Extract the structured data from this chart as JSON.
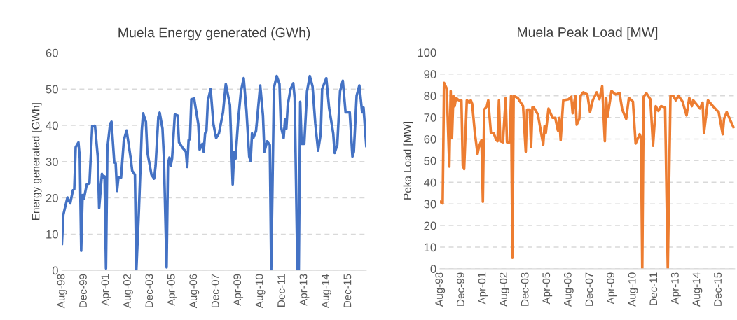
{
  "chart_data": [
    {
      "type": "line",
      "title": "Muela Energy generated (GWh)",
      "ylabel": "Energy generated [GWh]",
      "grid": "y",
      "xlim": [
        "1998-08",
        "2017-01"
      ],
      "ylim": [
        0,
        60
      ],
      "yticks": [
        0,
        10,
        20,
        30,
        40,
        50,
        60
      ],
      "xticks": [
        {
          "value": "1998-08",
          "label": "Aug-98"
        },
        {
          "value": "1999-12",
          "label": "Dec-99"
        },
        {
          "value": "2001-04",
          "label": "Apr-01"
        },
        {
          "value": "2002-08",
          "label": "Aug-02"
        },
        {
          "value": "2003-12",
          "label": "Dec-03"
        },
        {
          "value": "2005-04",
          "label": "Apr-05"
        },
        {
          "value": "2006-08",
          "label": "Aug-06"
        },
        {
          "value": "2007-12",
          "label": "Dec-07"
        },
        {
          "value": "2009-04",
          "label": "Apr-09"
        },
        {
          "value": "2010-08",
          "label": "Aug-10"
        },
        {
          "value": "2011-12",
          "label": "Dec-11"
        },
        {
          "value": "2013-04",
          "label": "Apr-13"
        },
        {
          "value": "2014-08",
          "label": "Aug-14"
        },
        {
          "value": "2015-12",
          "label": "Dec-15"
        }
      ],
      "series": [
        {
          "color": "#4472c4",
          "x": [
            "1998-08",
            "1998-09",
            "1998-10",
            "1998-12",
            "1999-02",
            "1999-04",
            "1999-05",
            "1999-06",
            "1999-08",
            "1999-09",
            "1999-10",
            "1999-11",
            "1999-12",
            "2000-02",
            "2000-04",
            "2000-06",
            "2000-08",
            "2000-10",
            "2000-11",
            "2001-01",
            "2001-02",
            "2001-03",
            "2001-04",
            "2001-05",
            "2001-07",
            "2001-08",
            "2001-10",
            "2001-11",
            "2001-12",
            "2002-01",
            "2002-03",
            "2002-05",
            "2002-07",
            "2002-10",
            "2002-11",
            "2003-01",
            "2003-02",
            "2003-04",
            "2003-06",
            "2003-07",
            "2003-09",
            "2003-10",
            "2004-01",
            "2004-03",
            "2004-04",
            "2004-06",
            "2004-07",
            "2004-09",
            "2004-10",
            "2004-12",
            "2005-01",
            "2005-02",
            "2005-03",
            "2005-04",
            "2005-06",
            "2005-08",
            "2005-09",
            "2005-12",
            "2006-02",
            "2006-03",
            "2006-04",
            "2006-05",
            "2006-06",
            "2006-08",
            "2006-11",
            "2006-12",
            "2007-02",
            "2007-03",
            "2007-04",
            "2007-05",
            "2007-06",
            "2007-08",
            "2007-10",
            "2007-12",
            "2008-02",
            "2008-05",
            "2008-07",
            "2008-10",
            "2008-12",
            "2009-01",
            "2009-02",
            "2009-04",
            "2009-06",
            "2009-08",
            "2009-10",
            "2009-12",
            "2010-01",
            "2010-02",
            "2010-03",
            "2010-05",
            "2010-08",
            "2010-10",
            "2010-11",
            "2011-01",
            "2011-03",
            "2011-04",
            "2011-06",
            "2011-08",
            "2011-10",
            "2011-11",
            "2012-01",
            "2012-02",
            "2012-03",
            "2012-04",
            "2012-06",
            "2012-08",
            "2012-09",
            "2012-11",
            "2012-12",
            "2013-01",
            "2013-02",
            "2013-04",
            "2013-06",
            "2013-08",
            "2013-10",
            "2013-12",
            "2014-02",
            "2014-04",
            "2014-05",
            "2014-08",
            "2014-10",
            "2015-01",
            "2015-02",
            "2015-04",
            "2015-06",
            "2015-08",
            "2015-10",
            "2016-01",
            "2016-03",
            "2016-04",
            "2016-06",
            "2016-08",
            "2016-10",
            "2016-11",
            "2017-01"
          ],
          "values": [
            7.3,
            15.3,
            16.9,
            20.1,
            18.5,
            22.1,
            22.4,
            34,
            35.3,
            30.8,
            5.4,
            20.8,
            19.8,
            23.7,
            24,
            39.8,
            39.9,
            31.4,
            17.2,
            26.6,
            25.6,
            25.9,
            0.5,
            33.6,
            40.4,
            41,
            29.8,
            29.5,
            21.9,
            25.6,
            25.6,
            35.9,
            38.6,
            30.8,
            27.5,
            26.4,
            0,
            17.2,
            38.5,
            43.3,
            41,
            32.7,
            26.4,
            25.3,
            28.8,
            42.3,
            43.5,
            39.1,
            31.4,
            0.8,
            29.5,
            31.1,
            28.8,
            30.8,
            43,
            42.7,
            35.3,
            33.6,
            32.7,
            28.5,
            35.9,
            36.2,
            47.2,
            47.4,
            40.4,
            33.3,
            34.9,
            32.7,
            37.8,
            38.5,
            46.8,
            50,
            40.4,
            36.5,
            37.8,
            43.6,
            51.4,
            45.6,
            23.7,
            32.7,
            30.8,
            41.4,
            49.4,
            53,
            44,
            31.4,
            30.1,
            37.8,
            36.5,
            38.5,
            51,
            42.7,
            32.7,
            35.6,
            34.6,
            0,
            50.4,
            53.6,
            51.4,
            39.8,
            36.5,
            41.7,
            39.1,
            45.6,
            50,
            51.6,
            47.5,
            0,
            0,
            46.5,
            34.9,
            34.9,
            49.4,
            53.6,
            50.7,
            40.4,
            33,
            37.8,
            50,
            53,
            44.9,
            37.8,
            32.4,
            34.6,
            49.4,
            52.3,
            43.6,
            43.6,
            31.4,
            32.7,
            48.1,
            51,
            43.6,
            44.9,
            34.3
          ]
        }
      ]
    },
    {
      "type": "line",
      "title": "Muela Peak Load [MW]",
      "ylabel": "Peka Load [MW]",
      "grid": "y",
      "xlim": [
        "1998-08",
        "2016-12"
      ],
      "ylim": [
        0,
        100
      ],
      "yticks": [
        0,
        10,
        20,
        30,
        40,
        50,
        60,
        70,
        80,
        90,
        100
      ],
      "xticks": [
        {
          "value": "1998-08",
          "label": "Aug-98"
        },
        {
          "value": "1999-12",
          "label": "Dec-99"
        },
        {
          "value": "2001-04",
          "label": "Apr-01"
        },
        {
          "value": "2002-08",
          "label": "Aug-02"
        },
        {
          "value": "2003-12",
          "label": "Dec-03"
        },
        {
          "value": "2005-04",
          "label": "Apr-05"
        },
        {
          "value": "2006-08",
          "label": "Aug-06"
        },
        {
          "value": "2007-12",
          "label": "Dec-07"
        },
        {
          "value": "2009-04",
          "label": "Apr-09"
        },
        {
          "value": "2010-08",
          "label": "Aug-10"
        },
        {
          "value": "2011-12",
          "label": "Dec-11"
        },
        {
          "value": "2013-04",
          "label": "Apr-13"
        },
        {
          "value": "2014-08",
          "label": "Aug-14"
        },
        {
          "value": "2015-12",
          "label": "Dec-15"
        }
      ],
      "series": [
        {
          "color": "#ed7d31",
          "x": [
            "1998-08",
            "1998-10",
            "1998-11",
            "1999-01",
            "1999-03",
            "1999-04",
            "1999-05",
            "1999-06",
            "1999-07",
            "1999-08",
            "1999-10",
            "1999-12",
            "2000-01",
            "2000-02",
            "2000-04",
            "2000-06",
            "2000-07",
            "2000-08",
            "2000-10",
            "2000-12",
            "2001-01",
            "2001-03",
            "2001-04",
            "2001-05",
            "2001-07",
            "2001-08",
            "2001-10",
            "2001-12",
            "2002-02",
            "2002-03",
            "2002-04",
            "2002-05",
            "2002-07",
            "2002-09",
            "2002-10",
            "2002-12",
            "2003-01",
            "2003-02",
            "2003-03",
            "2003-06",
            "2003-10",
            "2003-12",
            "2004-01",
            "2004-03",
            "2004-04",
            "2004-05",
            "2004-06",
            "2004-09",
            "2005-01",
            "2005-02",
            "2005-03",
            "2005-05",
            "2005-08",
            "2005-10",
            "2005-12",
            "2006-01",
            "2006-02",
            "2006-04",
            "2006-08",
            "2006-10",
            "2006-11",
            "2007-01",
            "2007-02",
            "2007-04",
            "2007-05",
            "2007-07",
            "2007-10",
            "2007-12",
            "2008-02",
            "2008-05",
            "2008-07",
            "2008-09",
            "2008-11",
            "2008-12",
            "2009-01",
            "2009-04",
            "2009-07",
            "2009-10",
            "2009-12",
            "2010-03",
            "2010-05",
            "2010-08",
            "2010-10",
            "2011-01",
            "2011-02",
            "2011-03",
            "2011-04",
            "2011-06",
            "2011-09",
            "2011-11",
            "2012-01",
            "2012-03",
            "2012-05",
            "2012-08",
            "2012-10",
            "2012-12",
            "2013-02",
            "2013-04",
            "2013-06",
            "2013-09",
            "2013-12",
            "2014-02",
            "2014-04",
            "2014-05",
            "2014-10",
            "2014-12",
            "2015-01",
            "2015-04",
            "2015-07",
            "2015-11",
            "2015-12",
            "2016-03",
            "2016-04",
            "2016-06",
            "2016-09",
            "2016-11"
          ],
          "values": [
            31,
            30.2,
            86,
            83.3,
            47.2,
            82.2,
            60.6,
            80,
            75.2,
            79,
            77.9,
            77.9,
            47.7,
            46.1,
            77.9,
            76.8,
            77.9,
            76.3,
            62.8,
            53.1,
            56.3,
            59.5,
            31,
            73.6,
            75.2,
            77.9,
            62.8,
            62.8,
            59.5,
            59,
            77.9,
            59,
            58.5,
            79,
            58.5,
            58.5,
            80,
            5.1,
            80,
            79,
            75.2,
            54.1,
            73.6,
            73.6,
            56.3,
            74.6,
            74.6,
            71.4,
            57.4,
            66,
            62.8,
            74.1,
            69.8,
            69.8,
            63.9,
            69.8,
            59.5,
            77.9,
            78.4,
            79.5,
            71.9,
            80,
            66.6,
            69.3,
            80,
            81.6,
            80.6,
            72.5,
            77.9,
            81.6,
            78.4,
            84.4,
            59,
            79,
            70.3,
            82.2,
            80.6,
            81.2,
            73.6,
            69.3,
            79,
            77.3,
            57.9,
            62.2,
            60.6,
            0,
            79.5,
            81.2,
            78.4,
            56.9,
            75.2,
            73,
            75.2,
            74.6,
            0,
            80,
            80,
            77.9,
            80,
            77.3,
            70.9,
            79,
            75.2,
            77.9,
            74.1,
            76.8,
            62.8,
            77.9,
            75.7,
            73,
            72.5,
            62.2,
            69.3,
            72.5,
            68.2,
            65.5
          ]
        }
      ]
    }
  ]
}
